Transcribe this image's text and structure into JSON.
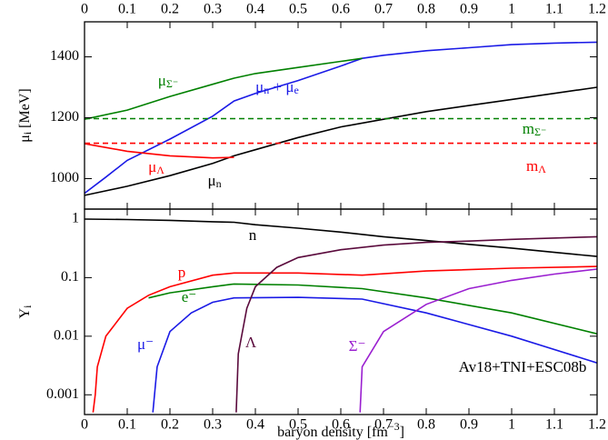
{
  "chart_data": [
    {
      "type": "line",
      "xlim": [
        0,
        1.2
      ],
      "xticks": [
        0,
        0.1,
        0.2,
        0.3,
        0.4,
        0.5,
        0.6,
        0.7,
        0.8,
        0.9,
        1,
        1.1,
        1.2
      ],
      "ylim": [
        900,
        1515
      ],
      "yticks": [
        1000,
        1200,
        1400
      ],
      "ylabel": [
        {
          "text": "μ"
        },
        {
          "sub": "i"
        },
        {
          "text": "  [MeV]"
        }
      ],
      "series": [
        {
          "color": "#000000",
          "x": [
            0,
            0.1,
            0.2,
            0.3,
            0.35,
            0.4,
            0.5,
            0.6,
            0.7,
            0.8,
            0.9,
            1.0,
            1.1,
            1.2
          ],
          "values": [
            945,
            975,
            1010,
            1050,
            1075,
            1095,
            1135,
            1170,
            1195,
            1220,
            1240,
            1260,
            1280,
            1300
          ]
        },
        {
          "color": "#1a1ae6",
          "x": [
            0,
            0.05,
            0.1,
            0.2,
            0.3,
            0.35,
            0.4,
            0.5,
            0.6,
            0.65,
            0.7,
            0.8,
            0.9,
            1.0,
            1.1,
            1.2
          ],
          "values": [
            952,
            1005,
            1060,
            1130,
            1205,
            1255,
            1280,
            1322,
            1370,
            1395,
            1405,
            1420,
            1430,
            1440,
            1445,
            1448
          ]
        },
        {
          "color": "#008000",
          "x": [
            0,
            0.1,
            0.2,
            0.3,
            0.35,
            0.4,
            0.5,
            0.6,
            0.65
          ],
          "values": [
            1195,
            1225,
            1270,
            1310,
            1330,
            1345,
            1365,
            1385,
            1395
          ]
        },
        {
          "color": "#ff0000",
          "x": [
            0,
            0.1,
            0.2,
            0.3,
            0.35
          ],
          "values": [
            1115,
            1090,
            1075,
            1068,
            1070
          ]
        },
        {
          "color": "#008000",
          "dashed": true,
          "x": [
            0,
            1.2
          ],
          "values": [
            1197,
            1197
          ]
        },
        {
          "color": "#ff0000",
          "dashed": true,
          "x": [
            0,
            1.2
          ],
          "values": [
            1116,
            1116
          ]
        }
      ],
      "annotations": [
        {
          "color": "#008000",
          "parts": [
            {
              "text": "μ"
            },
            {
              "sub": "Σ⁻"
            }
          ]
        },
        {
          "color": "#1a1ae6",
          "parts": [
            {
              "text": "μ"
            },
            {
              "sub": "n"
            },
            {
              "text": " + μ"
            },
            {
              "sub": "e"
            }
          ]
        },
        {
          "color": "#008000",
          "parts": [
            {
              "text": "m"
            },
            {
              "sub": "Σ⁻"
            }
          ]
        },
        {
          "color": "#ff0000",
          "parts": [
            {
              "text": "m"
            },
            {
              "sub": "Λ"
            }
          ]
        },
        {
          "color": "#ff0000",
          "parts": [
            {
              "text": "μ"
            },
            {
              "sub": "Λ"
            }
          ]
        },
        {
          "color": "#000000",
          "parts": [
            {
              "text": "μ"
            },
            {
              "sub": "n"
            }
          ]
        }
      ]
    },
    {
      "type": "line",
      "yscale": "log",
      "xlim": [
        0,
        1.2
      ],
      "xticks": [
        0,
        0.1,
        0.2,
        0.3,
        0.4,
        0.5,
        0.6,
        0.7,
        0.8,
        0.9,
        1,
        1.1,
        1.2
      ],
      "ylim": [
        0.00046,
        1.48
      ],
      "yticks": [
        1,
        0.1,
        0.01,
        0.001
      ],
      "ylabel": [
        {
          "text": "Y"
        },
        {
          "sub": "i"
        }
      ],
      "xlabel": [
        {
          "text": "baryon density [fm"
        },
        {
          "sup": "−3"
        },
        {
          "text": "]"
        }
      ],
      "series": [
        {
          "color": "#000000",
          "x": [
            0,
            0.1,
            0.2,
            0.3,
            0.35,
            0.4,
            0.5,
            0.6,
            0.7,
            0.8,
            0.9,
            1.0,
            1.1,
            1.2
          ],
          "values": [
            1,
            0.98,
            0.95,
            0.9,
            0.88,
            0.8,
            0.7,
            0.6,
            0.5,
            0.43,
            0.37,
            0.32,
            0.27,
            0.23
          ]
        },
        {
          "color": "#ff0000",
          "x": [
            0.02,
            0.025,
            0.03,
            0.05,
            0.1,
            0.15,
            0.2,
            0.3,
            0.35,
            0.5,
            0.65,
            0.8,
            1.0,
            1.2
          ],
          "values": [
            0.0005,
            0.001,
            0.003,
            0.01,
            0.03,
            0.05,
            0.07,
            0.11,
            0.12,
            0.12,
            0.11,
            0.13,
            0.145,
            0.155
          ]
        },
        {
          "color": "#008000",
          "x": [
            0.15,
            0.2,
            0.3,
            0.35,
            0.5,
            0.65,
            0.8,
            1.0,
            1.2
          ],
          "values": [
            0.045,
            0.055,
            0.07,
            0.078,
            0.075,
            0.065,
            0.045,
            0.025,
            0.011
          ]
        },
        {
          "color": "#1a1ae6",
          "x": [
            0.16,
            0.17,
            0.2,
            0.25,
            0.3,
            0.35,
            0.5,
            0.65,
            0.8,
            1.0,
            1.2
          ],
          "values": [
            0.0005,
            0.003,
            0.012,
            0.025,
            0.038,
            0.045,
            0.046,
            0.043,
            0.025,
            0.01,
            0.0035
          ]
        },
        {
          "color": "#5a0a3c",
          "x": [
            0.355,
            0.36,
            0.38,
            0.4,
            0.45,
            0.5,
            0.6,
            0.7,
            0.8,
            0.9,
            1.0,
            1.2
          ],
          "values": [
            0.0005,
            0.005,
            0.03,
            0.07,
            0.15,
            0.22,
            0.3,
            0.36,
            0.4,
            0.42,
            0.45,
            0.5
          ]
        },
        {
          "color": "#9a1fd0",
          "x": [
            0.645,
            0.65,
            0.7,
            0.8,
            0.9,
            1.0,
            1.1,
            1.2
          ],
          "values": [
            0.0005,
            0.003,
            0.012,
            0.035,
            0.065,
            0.09,
            0.115,
            0.14
          ]
        }
      ],
      "annotations": [
        {
          "color": "#000000",
          "parts": [
            {
              "text": "n"
            }
          ]
        },
        {
          "color": "#ff0000",
          "parts": [
            {
              "text": "p"
            }
          ]
        },
        {
          "color": "#008000",
          "parts": [
            {
              "text": "e⁻"
            }
          ]
        },
        {
          "color": "#1a1ae6",
          "parts": [
            {
              "text": "μ⁻"
            }
          ]
        },
        {
          "color": "#5a0a3c",
          "parts": [
            {
              "text": "Λ"
            }
          ]
        },
        {
          "color": "#9a1fd0",
          "parts": [
            {
              "text": "Σ⁻"
            }
          ]
        },
        {
          "color": "#000000",
          "parts": [
            {
              "text": "Av18+TNI+ESC08b"
            }
          ]
        }
      ]
    }
  ]
}
